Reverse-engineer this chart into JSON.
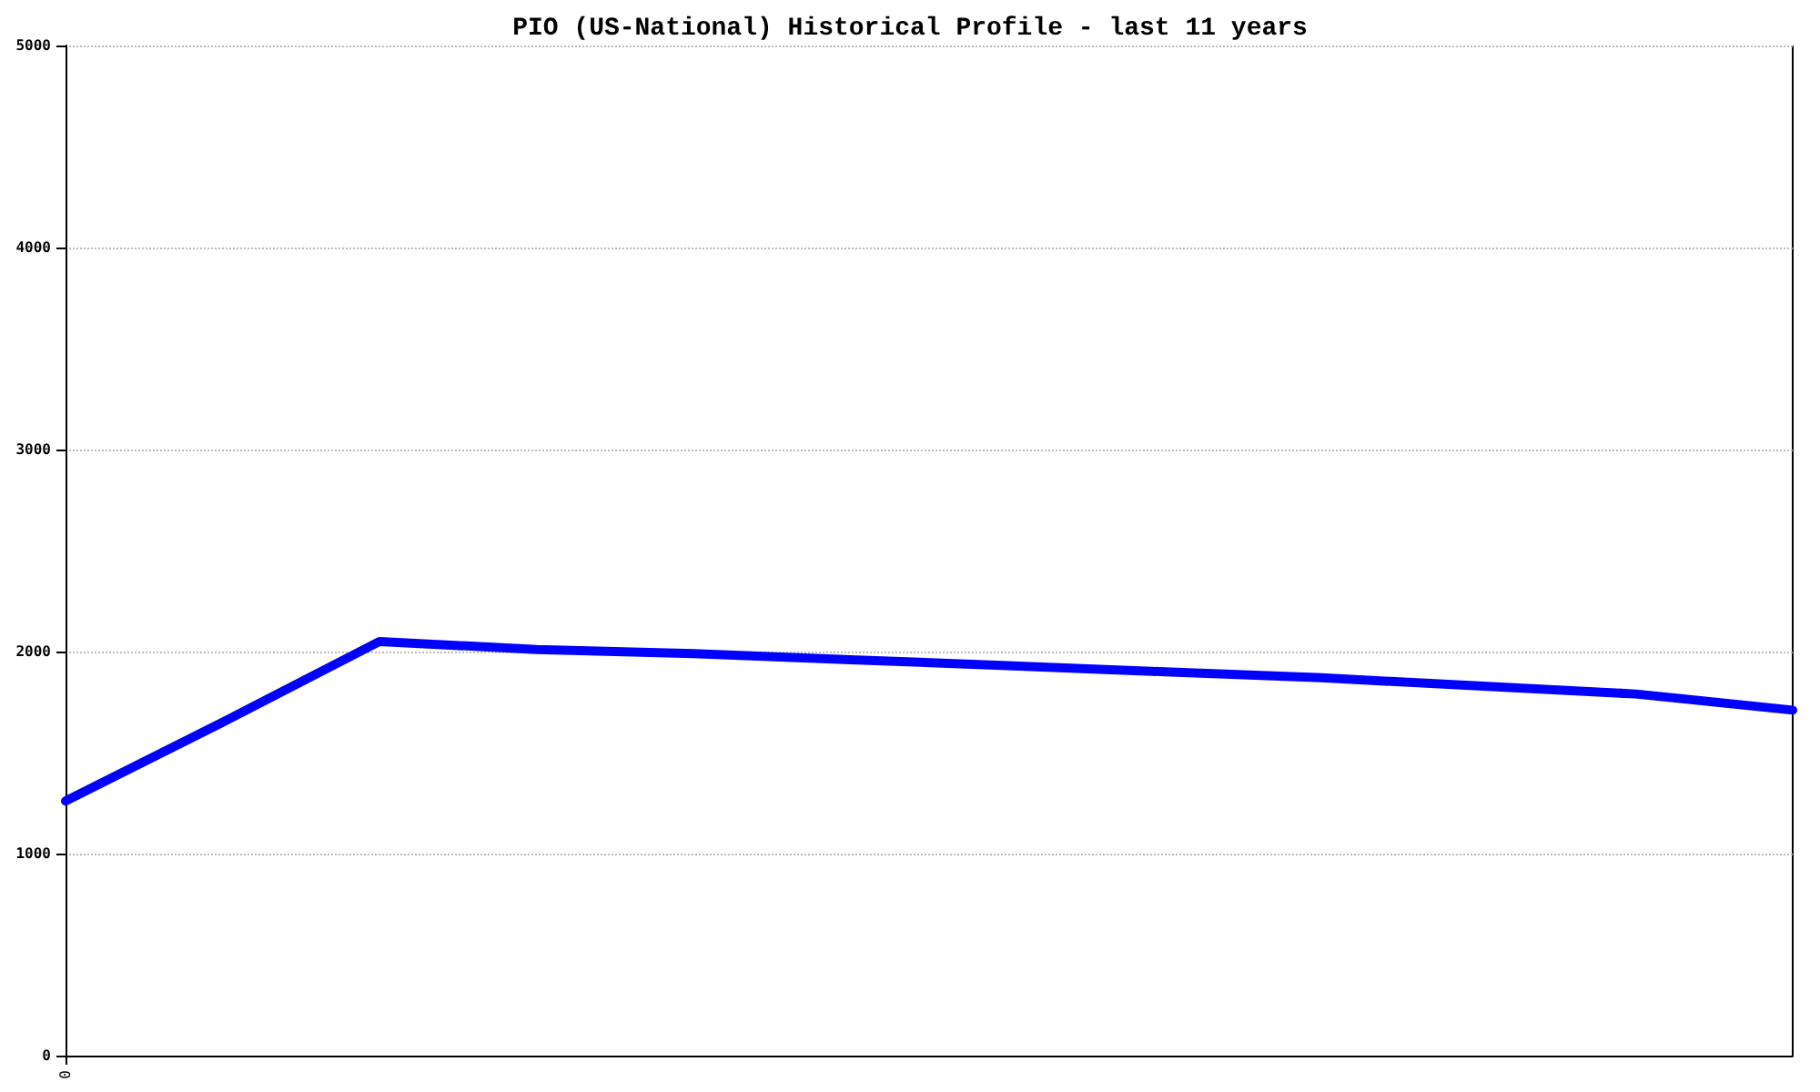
{
  "chart_data": {
    "type": "line",
    "title": "PIO (US-National) Historical Profile - last 11 years",
    "categories": [
      "0",
      null,
      null,
      null,
      null,
      null,
      null,
      null,
      null,
      null,
      null,
      null
    ],
    "series": [
      {
        "color": "#0000ff",
        "values": [
          1260,
          1650,
          2050,
          2010,
          1990,
          1960,
          1930,
          1900,
          1870,
          1830,
          1790,
          1710
        ]
      }
    ],
    "ylim": [
      0,
      5000
    ],
    "yticks": [
      0,
      1000,
      2000,
      3000,
      4000,
      5000
    ],
    "grid": "y",
    "marker": "none",
    "line_style": "solid"
  }
}
